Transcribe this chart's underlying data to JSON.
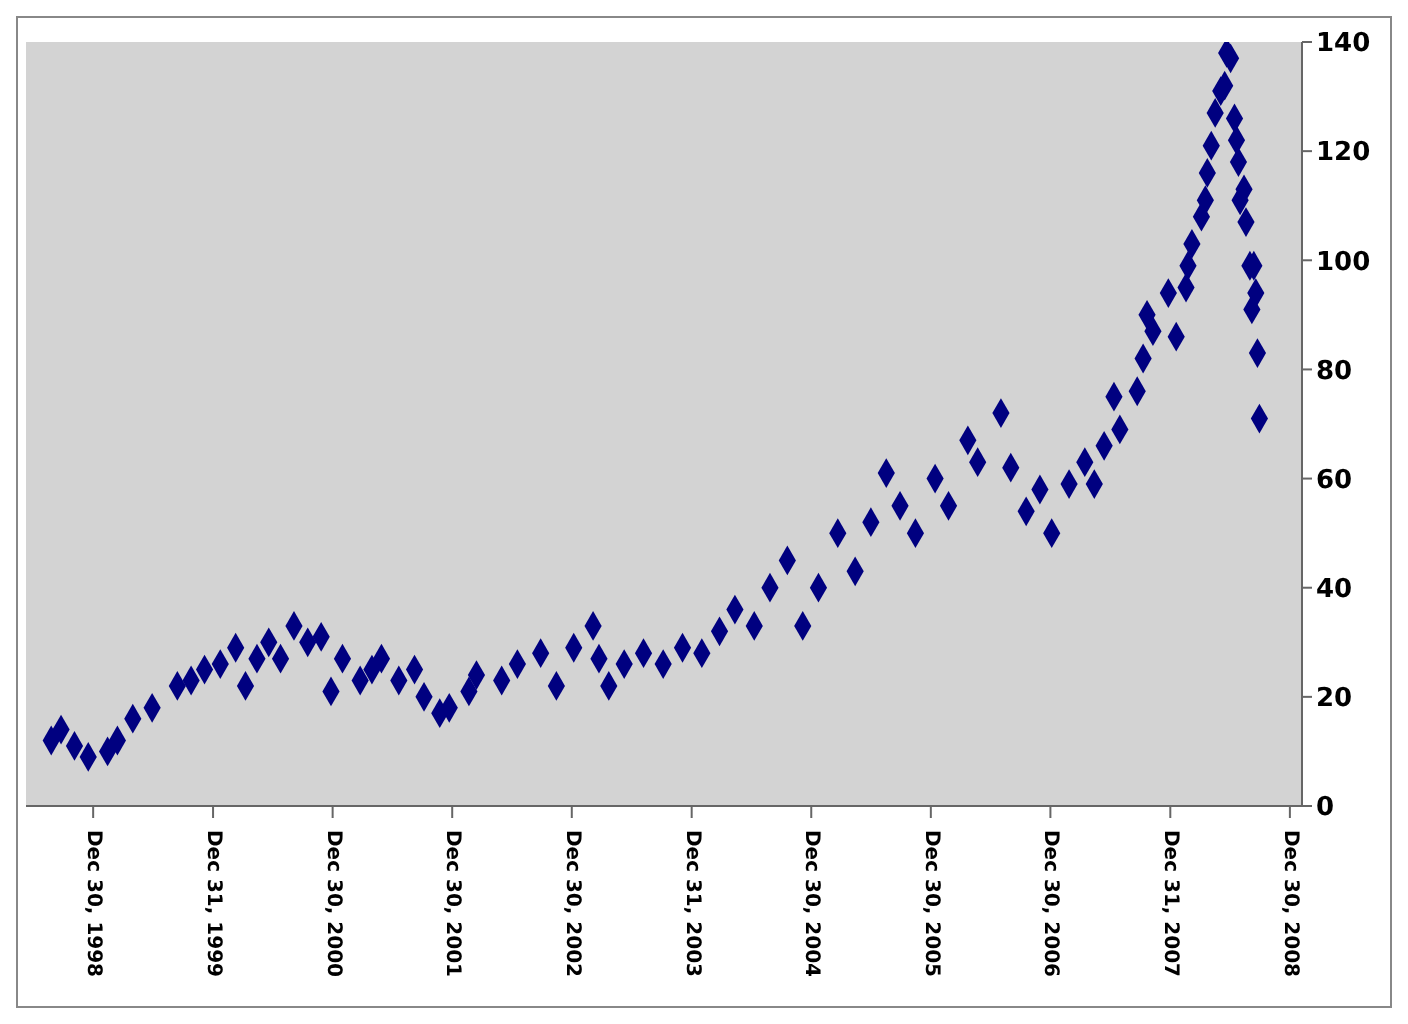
{
  "chart_data": {
    "type": "scatter",
    "marker": "diamond",
    "grid": false,
    "xlim": [
      "1998-06-08",
      "2009-02-05"
    ],
    "xticks": [
      {
        "value": "1998-12-30",
        "label": "Dec 30, 1998"
      },
      {
        "value": "1999-12-31",
        "label": "Dec 31, 1999"
      },
      {
        "value": "2000-12-30",
        "label": "Dec 30, 2000"
      },
      {
        "value": "2001-12-30",
        "label": "Dec 30, 2001"
      },
      {
        "value": "2002-12-30",
        "label": "Dec 30, 2002"
      },
      {
        "value": "2003-12-31",
        "label": "Dec 31, 2003"
      },
      {
        "value": "2004-12-30",
        "label": "Dec 30, 2004"
      },
      {
        "value": "2005-12-30",
        "label": "Dec 30, 2005"
      },
      {
        "value": "2006-12-30",
        "label": "Dec 30, 2006"
      },
      {
        "value": "2007-12-31",
        "label": "Dec 31, 2007"
      },
      {
        "value": "2008-12-30",
        "label": "Dec 30, 2008"
      }
    ],
    "ylim": [
      0,
      140
    ],
    "yticks": [
      0,
      20,
      40,
      60,
      80,
      100,
      120,
      140
    ],
    "x": [
      "1998-08-24",
      "1998-09-23",
      "1998-11-03",
      "1998-12-15",
      "1999-02-12",
      "1999-03-14",
      "1999-04-30",
      "1999-06-28",
      "1999-09-13",
      "1999-10-25",
      "1999-12-05",
      "2000-01-22",
      "2000-03-09",
      "2000-04-08",
      "2000-05-13",
      "2000-06-18",
      "2000-07-24",
      "2000-09-03",
      "2000-10-15",
      "2000-11-25",
      "2000-12-25",
      "2001-01-29",
      "2001-03-24",
      "2001-04-29",
      "2001-05-28",
      "2001-07-20",
      "2001-09-06",
      "2001-10-05",
      "2001-11-22",
      "2001-12-21",
      "2002-02-19",
      "2002-03-14",
      "2002-05-30",
      "2002-07-17",
      "2002-09-26",
      "2002-11-13",
      "2003-01-05",
      "2003-03-05",
      "2003-03-23",
      "2003-04-22",
      "2003-06-08",
      "2003-08-06",
      "2003-10-05",
      "2003-12-03",
      "2004-01-31",
      "2004-03-25",
      "2004-05-11",
      "2004-07-09",
      "2004-08-26",
      "2004-10-18",
      "2004-12-04",
      "2005-01-21",
      "2005-03-21",
      "2005-05-13",
      "2005-06-30",
      "2005-08-16",
      "2005-09-27",
      "2005-11-13",
      "2006-01-12",
      "2006-02-22",
      "2006-04-22",
      "2006-05-22",
      "2006-08-01",
      "2006-08-31",
      "2006-10-17",
      "2006-11-28",
      "2007-01-03",
      "2007-02-25",
      "2007-04-14",
      "2007-05-13",
      "2007-06-12",
      "2007-07-12",
      "2007-07-30",
      "2007-09-21",
      "2007-10-09",
      "2007-10-21",
      "2007-11-08",
      "2007-12-25",
      "2008-01-18",
      "2008-02-17",
      "2008-02-23",
      "2008-03-06",
      "2008-04-04",
      "2008-04-16",
      "2008-04-22",
      "2008-05-04",
      "2008-05-16",
      "2008-06-02",
      "2008-06-14",
      "2008-06-20",
      "2008-07-02",
      "2008-07-14",
      "2008-07-20",
      "2008-07-26",
      "2008-07-31",
      "2008-08-12",
      "2008-08-18",
      "2008-08-30",
      "2008-09-05",
      "2008-09-11",
      "2008-09-17",
      "2008-09-22",
      "2008-09-28"
    ],
    "series": [
      {
        "color": "#000080",
        "values": [
          12,
          14,
          11,
          9,
          10,
          12,
          16,
          18,
          22,
          23,
          25,
          26,
          29,
          22,
          27,
          30,
          27,
          33,
          30,
          31,
          21,
          27,
          23,
          25,
          27,
          23,
          25,
          20,
          17,
          18,
          21,
          24,
          23,
          26,
          28,
          22,
          29,
          33,
          27,
          22,
          26,
          28,
          26,
          29,
          28,
          32,
          36,
          33,
          40,
          45,
          33,
          40,
          50,
          43,
          52,
          61,
          55,
          50,
          60,
          55,
          67,
          63,
          72,
          62,
          54,
          58,
          50,
          59,
          63,
          59,
          66,
          75,
          69,
          76,
          82,
          90,
          87,
          94,
          86,
          95,
          99,
          103,
          108,
          111,
          116,
          121,
          127,
          131,
          132,
          138,
          137,
          126,
          122,
          118,
          111,
          113,
          107,
          99,
          91,
          99,
          94,
          83,
          71
        ]
      }
    ]
  }
}
